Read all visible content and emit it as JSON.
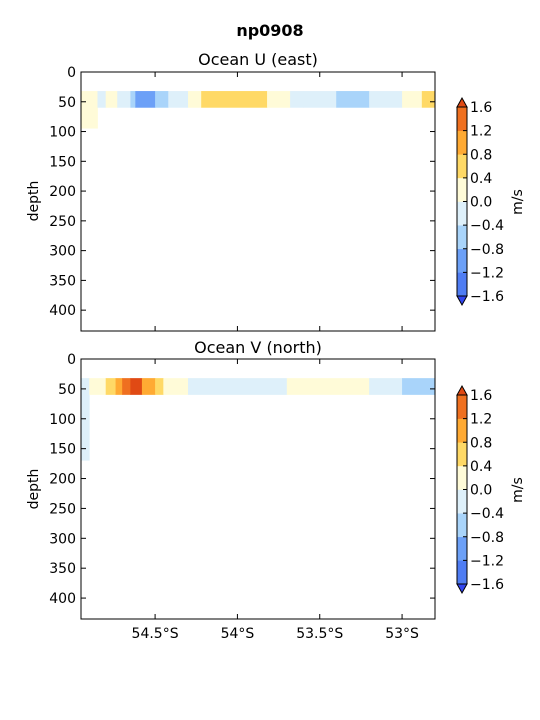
{
  "figure": {
    "suptitle": "np0908"
  },
  "colorbar": {
    "label": "m/s",
    "levels": [
      -1.6,
      -1.2,
      -0.8,
      -0.4,
      0.0,
      0.4,
      0.8,
      1.2,
      1.6
    ],
    "tick_labels": [
      "−1.6",
      "−1.2",
      "−0.8",
      "−0.4",
      "0.0",
      "0.4",
      "0.8",
      "1.2",
      "1.6"
    ],
    "colors": [
      "#3246f0",
      "#4f7df3",
      "#6ca0f7",
      "#a9d4fa",
      "#def0fa",
      "#fffbd8",
      "#ffd966",
      "#ffaa33",
      "#ef7020",
      "#e04a14"
    ],
    "extend": "both"
  },
  "chart_data": [
    {
      "type": "heatmap",
      "title": "Ocean U (east)",
      "ylabel": "depth",
      "xlabel": "",
      "xlim": [
        -54.95,
        -52.8
      ],
      "ylim": [
        435,
        0
      ],
      "yticks": [
        0,
        50,
        100,
        150,
        200,
        250,
        300,
        350,
        400
      ],
      "xticks": [
        -54.5,
        -54.0,
        -53.5,
        -53.0
      ],
      "xtick_labels": [
        "54.5°S",
        "54°S",
        "53.5°S",
        "53°S"
      ],
      "show_xtick_labels": false,
      "band_depth": [
        32,
        60
      ],
      "band_segments": [
        {
          "lon": [
            -54.95,
            -54.85
          ],
          "u": 0.1,
          "deep_to": 95
        },
        {
          "lon": [
            -54.85,
            -54.8
          ],
          "u": -0.1
        },
        {
          "lon": [
            -54.8,
            -54.73
          ],
          "u": 0.2
        },
        {
          "lon": [
            -54.73,
            -54.65
          ],
          "u": -0.2
        },
        {
          "lon": [
            -54.65,
            -54.62
          ],
          "u": -0.6
        },
        {
          "lon": [
            -54.62,
            -54.5
          ],
          "u": -1.0
        },
        {
          "lon": [
            -54.5,
            -54.42
          ],
          "u": -0.6
        },
        {
          "lon": [
            -54.42,
            -54.3
          ],
          "u": -0.2
        },
        {
          "lon": [
            -54.3,
            -54.22
          ],
          "u": 0.2
        },
        {
          "lon": [
            -54.22,
            -53.82
          ],
          "u": 0.6
        },
        {
          "lon": [
            -53.82,
            -53.68
          ],
          "u": 0.2
        },
        {
          "lon": [
            -53.68,
            -53.6
          ],
          "u": -0.2
        },
        {
          "lon": [
            -53.6,
            -53.4
          ],
          "u": -0.1
        },
        {
          "lon": [
            -53.4,
            -53.2
          ],
          "u": -0.6
        },
        {
          "lon": [
            -53.2,
            -53.0
          ],
          "u": -0.2
        },
        {
          "lon": [
            -53.0,
            -52.95
          ],
          "u": 0.2
        },
        {
          "lon": [
            -52.95,
            -52.88
          ],
          "u": 0.2
        },
        {
          "lon": [
            -52.88,
            -52.8
          ],
          "u": 0.6
        }
      ]
    },
    {
      "type": "heatmap",
      "title": "Ocean V (north)",
      "ylabel": "depth",
      "xlabel": "",
      "xlim": [
        -54.95,
        -52.8
      ],
      "ylim": [
        435,
        0
      ],
      "yticks": [
        0,
        50,
        100,
        150,
        200,
        250,
        300,
        350,
        400
      ],
      "xticks": [
        -54.5,
        -54.0,
        -53.5,
        -53.0
      ],
      "xtick_labels": [
        "54.5°S",
        "54°S",
        "53.5°S",
        "53°S"
      ],
      "show_xtick_labels": true,
      "band_depth": [
        32,
        60
      ],
      "band_segments": [
        {
          "lon": [
            -54.95,
            -54.9
          ],
          "v": -0.2,
          "deep_to": 170
        },
        {
          "lon": [
            -54.9,
            -54.8
          ],
          "v": 0.1
        },
        {
          "lon": [
            -54.8,
            -54.74
          ],
          "v": 0.6
        },
        {
          "lon": [
            -54.74,
            -54.7
          ],
          "v": 1.0
        },
        {
          "lon": [
            -54.7,
            -54.65
          ],
          "v": 1.4
        },
        {
          "lon": [
            -54.65,
            -54.58
          ],
          "v": 1.6
        },
        {
          "lon": [
            -54.58,
            -54.5
          ],
          "v": 1.0
        },
        {
          "lon": [
            -54.5,
            -54.45
          ],
          "v": 0.6
        },
        {
          "lon": [
            -54.45,
            -54.3
          ],
          "v": 0.2
        },
        {
          "lon": [
            -54.3,
            -53.7
          ],
          "v": -0.2
        },
        {
          "lon": [
            -53.7,
            -53.2
          ],
          "v": 0.2
        },
        {
          "lon": [
            -53.2,
            -53.0
          ],
          "v": -0.2
        },
        {
          "lon": [
            -53.0,
            -52.8
          ],
          "v": -0.6
        }
      ]
    }
  ]
}
